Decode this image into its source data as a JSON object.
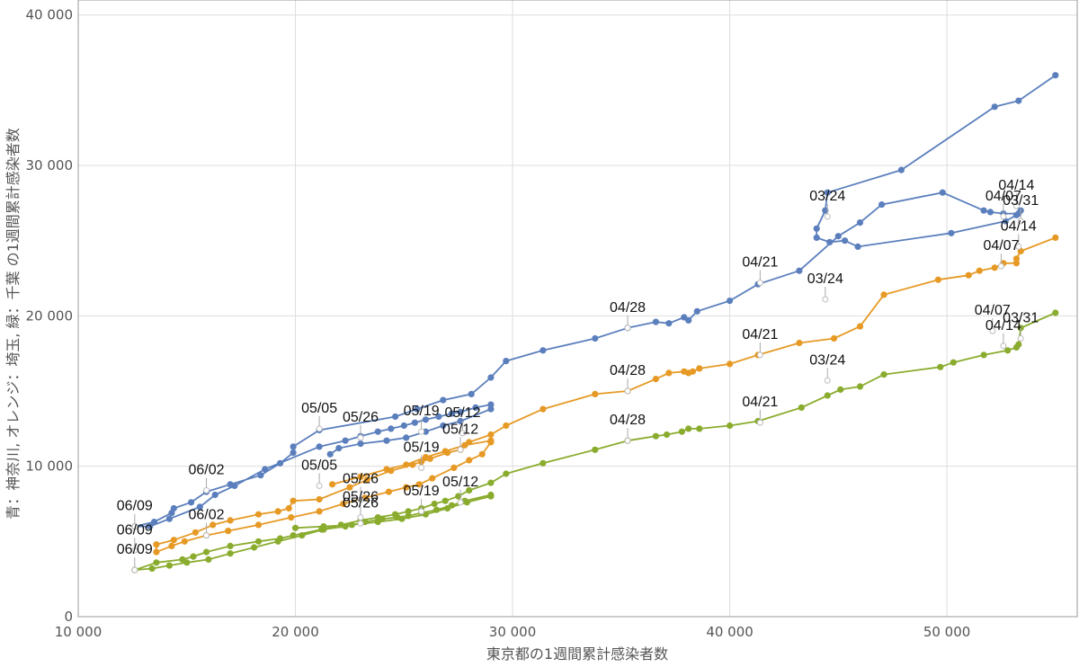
{
  "chart_data": {
    "type": "line",
    "xlabel": "東京都の1週間累計感染者数",
    "ylabel": "青：神奈川, オレンジ：埼玉, 緑：千葉 の1週間累計感染者数",
    "xlim": [
      10000,
      56000
    ],
    "ylim": [
      0,
      41000
    ],
    "xticks": [
      10000,
      20000,
      30000,
      40000,
      50000
    ],
    "yticks": [
      0,
      10000,
      20000,
      30000,
      40000
    ],
    "xtick_labels": [
      "10 000",
      "20 000",
      "30 000",
      "40 000",
      "50 000"
    ],
    "ytick_labels": [
      "0",
      "10 000",
      "20 000",
      "30 000",
      "40 000"
    ],
    "grid": true,
    "series": [
      {
        "color": "#5b7fbd",
        "points": [
          [
            55000,
            36000
          ],
          [
            53300,
            34300
          ],
          [
            52200,
            33900
          ],
          [
            47900,
            29700
          ],
          [
            44500,
            28200
          ],
          [
            44400,
            27000
          ],
          [
            44000,
            25800
          ],
          [
            44000,
            25200
          ],
          [
            44600,
            24900
          ],
          [
            45300,
            25000
          ],
          [
            45900,
            24600
          ],
          [
            50200,
            25500
          ],
          [
            52700,
            26300
          ],
          [
            53200,
            26700
          ],
          [
            53400,
            27000
          ],
          [
            53300,
            26800
          ],
          [
            52600,
            26800
          ],
          [
            52000,
            26900
          ],
          [
            51700,
            27000
          ],
          [
            49800,
            28200
          ],
          [
            47000,
            27400
          ],
          [
            46000,
            26200
          ],
          [
            45000,
            25300
          ],
          [
            43200,
            23000
          ],
          [
            41300,
            22100
          ],
          [
            40000,
            21000
          ],
          [
            38500,
            20300
          ],
          [
            38100,
            19700
          ],
          [
            37900,
            19900
          ],
          [
            37200,
            19500
          ],
          [
            36600,
            19600
          ],
          [
            35300,
            19200
          ],
          [
            33800,
            18500
          ],
          [
            31400,
            17700
          ],
          [
            29700,
            17000
          ],
          [
            29000,
            15900
          ],
          [
            28100,
            14800
          ],
          [
            26800,
            14400
          ],
          [
            25600,
            13800
          ],
          [
            24600,
            13300
          ],
          [
            21100,
            12400
          ],
          [
            19900,
            11300
          ],
          [
            19900,
            10900
          ],
          [
            19300,
            10200
          ],
          [
            18400,
            9400
          ],
          [
            17000,
            8800
          ],
          [
            15900,
            8300
          ],
          [
            15200,
            7600
          ],
          [
            14400,
            7200
          ],
          [
            14300,
            6900
          ],
          [
            13500,
            6300
          ],
          [
            12600,
            6000
          ],
          [
            13300,
            6000
          ],
          [
            14200,
            6500
          ],
          [
            15600,
            7300
          ],
          [
            16300,
            8100
          ],
          [
            17200,
            8700
          ],
          [
            18600,
            9800
          ],
          [
            21100,
            11300
          ],
          [
            22300,
            11700
          ],
          [
            23000,
            12000
          ],
          [
            23800,
            12300
          ],
          [
            24400,
            12500
          ],
          [
            25000,
            12700
          ],
          [
            25500,
            12900
          ],
          [
            26000,
            13100
          ],
          [
            26600,
            13300
          ],
          [
            27200,
            13500
          ],
          [
            27600,
            13600
          ],
          [
            28300,
            13900
          ],
          [
            29000,
            14100
          ],
          [
            29000,
            13800
          ],
          [
            27600,
            13000
          ],
          [
            26800,
            12700
          ],
          [
            26000,
            12300
          ],
          [
            25100,
            11900
          ],
          [
            24200,
            11700
          ],
          [
            23000,
            11500
          ],
          [
            22000,
            11200
          ],
          [
            21600,
            10800
          ]
        ]
      },
      {
        "color": "#e69a25",
        "points": [
          [
            55000,
            25200
          ],
          [
            53400,
            24300
          ],
          [
            53200,
            23800
          ],
          [
            53200,
            23500
          ],
          [
            52600,
            23500
          ],
          [
            52200,
            23200
          ],
          [
            51500,
            23000
          ],
          [
            51000,
            22700
          ],
          [
            49600,
            22400
          ],
          [
            47100,
            21400
          ],
          [
            46000,
            19300
          ],
          [
            44800,
            18500
          ],
          [
            43200,
            18200
          ],
          [
            41300,
            17400
          ],
          [
            40000,
            16800
          ],
          [
            38600,
            16500
          ],
          [
            38300,
            16300
          ],
          [
            38100,
            16200
          ],
          [
            37900,
            16300
          ],
          [
            37200,
            16200
          ],
          [
            36600,
            15800
          ],
          [
            35300,
            15000
          ],
          [
            33800,
            14800
          ],
          [
            31400,
            13800
          ],
          [
            29700,
            12700
          ],
          [
            29000,
            12100
          ],
          [
            28000,
            11600
          ],
          [
            27600,
            11100
          ],
          [
            27000,
            10900
          ],
          [
            26200,
            10500
          ],
          [
            25800,
            10300
          ],
          [
            25400,
            10100
          ],
          [
            24400,
            9700
          ],
          [
            23300,
            9100
          ],
          [
            22500,
            8600
          ],
          [
            21100,
            7800
          ],
          [
            19900,
            7700
          ],
          [
            19700,
            7200
          ],
          [
            19200,
            7000
          ],
          [
            18300,
            6800
          ],
          [
            17000,
            6400
          ],
          [
            16200,
            6100
          ],
          [
            15400,
            5600
          ],
          [
            14400,
            5100
          ],
          [
            13600,
            4800
          ],
          [
            13600,
            4300
          ],
          [
            14300,
            4700
          ],
          [
            14900,
            5000
          ],
          [
            15900,
            5400
          ],
          [
            16900,
            5700
          ],
          [
            18300,
            6100
          ],
          [
            19800,
            6600
          ],
          [
            21100,
            7000
          ],
          [
            22200,
            7500
          ],
          [
            23200,
            7900
          ],
          [
            24300,
            8300
          ],
          [
            25100,
            8600
          ],
          [
            25700,
            8800
          ],
          [
            26300,
            9200
          ],
          [
            27300,
            9900
          ],
          [
            28000,
            10400
          ],
          [
            28600,
            10800
          ],
          [
            29000,
            11600
          ],
          [
            29000,
            11700
          ],
          [
            27800,
            11400
          ],
          [
            26900,
            11000
          ],
          [
            26000,
            10600
          ],
          [
            25100,
            10100
          ],
          [
            24200,
            9800
          ],
          [
            23000,
            9300
          ],
          [
            21700,
            8800
          ]
        ]
      },
      {
        "color": "#8aac2e",
        "points": [
          [
            55000,
            20200
          ],
          [
            53400,
            19200
          ],
          [
            53300,
            18100
          ],
          [
            53200,
            17900
          ],
          [
            52800,
            17700
          ],
          [
            51700,
            17400
          ],
          [
            50300,
            16900
          ],
          [
            49700,
            16600
          ],
          [
            47100,
            16100
          ],
          [
            46000,
            15300
          ],
          [
            45100,
            15100
          ],
          [
            44500,
            14700
          ],
          [
            43300,
            13900
          ],
          [
            41300,
            13000
          ],
          [
            40000,
            12700
          ],
          [
            38600,
            12500
          ],
          [
            38100,
            12500
          ],
          [
            37800,
            12300
          ],
          [
            37100,
            12100
          ],
          [
            36600,
            12000
          ],
          [
            35300,
            11700
          ],
          [
            33800,
            11100
          ],
          [
            31400,
            10200
          ],
          [
            29700,
            9500
          ],
          [
            29000,
            8900
          ],
          [
            28000,
            8400
          ],
          [
            27500,
            8000
          ],
          [
            26900,
            7700
          ],
          [
            26400,
            7500
          ],
          [
            25800,
            7200
          ],
          [
            25200,
            7000
          ],
          [
            24600,
            6800
          ],
          [
            23800,
            6600
          ],
          [
            23000,
            6400
          ],
          [
            22100,
            6100
          ],
          [
            21200,
            5800
          ],
          [
            19900,
            5400
          ],
          [
            19300,
            5200
          ],
          [
            18300,
            5000
          ],
          [
            17000,
            4700
          ],
          [
            15900,
            4300
          ],
          [
            15300,
            4000
          ],
          [
            14800,
            3800
          ],
          [
            13600,
            3600
          ],
          [
            12600,
            3100
          ],
          [
            13400,
            3200
          ],
          [
            14200,
            3400
          ],
          [
            15000,
            3600
          ],
          [
            16000,
            3800
          ],
          [
            17000,
            4200
          ],
          [
            18100,
            4600
          ],
          [
            19200,
            5000
          ],
          [
            20300,
            5400
          ],
          [
            21300,
            5800
          ],
          [
            22300,
            6000
          ],
          [
            23200,
            6300
          ],
          [
            24000,
            6500
          ],
          [
            24700,
            6600
          ],
          [
            25200,
            6700
          ],
          [
            25800,
            6900
          ],
          [
            26500,
            7100
          ],
          [
            27200,
            7400
          ],
          [
            27800,
            7700
          ],
          [
            29000,
            8100
          ],
          [
            29000,
            8000
          ],
          [
            27900,
            7600
          ],
          [
            27000,
            7200
          ],
          [
            26000,
            6800
          ],
          [
            24900,
            6500
          ],
          [
            23800,
            6300
          ],
          [
            22600,
            6100
          ],
          [
            21300,
            6000
          ],
          [
            20000,
            5900
          ]
        ]
      }
    ],
    "annotations": [
      {
        "text": "04/14",
        "x": 53200,
        "y": 27300
      },
      {
        "text": "04/07",
        "x": 52600,
        "y": 26600
      },
      {
        "text": "03/31",
        "x": 53400,
        "y": 26300
      },
      {
        "text": "03/24",
        "x": 44500,
        "y": 26600
      },
      {
        "text": "04/21",
        "x": 41400,
        "y": 22200
      },
      {
        "text": "04/28",
        "x": 35300,
        "y": 19200
      },
      {
        "text": "05/05",
        "x": 21100,
        "y": 12500
      },
      {
        "text": "05/12",
        "x": 27700,
        "y": 12200
      },
      {
        "text": "05/19",
        "x": 25800,
        "y": 12300
      },
      {
        "text": "05/26",
        "x": 23000,
        "y": 11900
      },
      {
        "text": "06/02",
        "x": 15900,
        "y": 8400
      },
      {
        "text": "06/09",
        "x": 12600,
        "y": 6000
      },
      {
        "text": "04/14",
        "x": 53300,
        "y": 24600
      },
      {
        "text": "04/07",
        "x": 52500,
        "y": 23300
      },
      {
        "text": "03/24",
        "x": 44400,
        "y": 21100
      },
      {
        "text": "04/21",
        "x": 41400,
        "y": 17400
      },
      {
        "text": "04/28",
        "x": 35300,
        "y": 15000
      },
      {
        "text": "05/05",
        "x": 21100,
        "y": 8700
      },
      {
        "text": "05/12",
        "x": 27600,
        "y": 11100
      },
      {
        "text": "05/19",
        "x": 25800,
        "y": 9900
      },
      {
        "text": "05/26",
        "x": 23000,
        "y": 7800
      },
      {
        "text": "06/02",
        "x": 15900,
        "y": 5400
      },
      {
        "text": "06/09",
        "x": 12600,
        "y": 4400
      },
      {
        "text": "04/07",
        "x": 52100,
        "y": 19000
      },
      {
        "text": "03/31",
        "x": 53400,
        "y": 18500
      },
      {
        "text": "04/14",
        "x": 52600,
        "y": 18000
      },
      {
        "text": "03/24",
        "x": 44500,
        "y": 15700
      },
      {
        "text": "04/21",
        "x": 41400,
        "y": 12900
      },
      {
        "text": "04/28",
        "x": 35300,
        "y": 11700
      },
      {
        "text": "05/12",
        "x": 27600,
        "y": 7600
      },
      {
        "text": "05/19",
        "x": 25800,
        "y": 7000
      },
      {
        "text": "05/26",
        "x": 23000,
        "y": 6200
      },
      {
        "text": "05/26",
        "x": 23000,
        "y": 6600
      },
      {
        "text": "06/09",
        "x": 12600,
        "y": 3100
      }
    ]
  }
}
